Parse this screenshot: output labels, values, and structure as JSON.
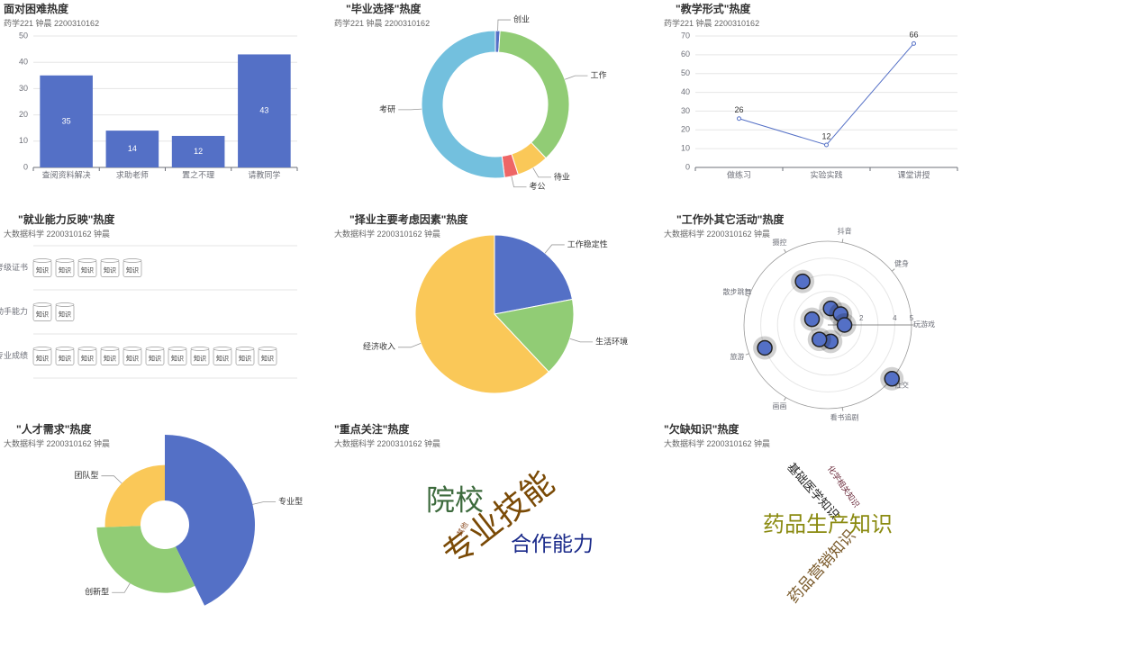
{
  "colors": {
    "blue": "#5470c6",
    "green": "#91cc75",
    "yellow": "#fac858",
    "red": "#ee6666",
    "cyan": "#73c0de",
    "axis": "#6e7079",
    "grid": "#e6e6e6"
  },
  "panels": {
    "p1": {
      "title": "面对困难热度",
      "subtitle": "药学221 钟晨 2200310162"
    },
    "p2": {
      "title": "\"毕业选择\"热度",
      "subtitle": "药学221 钟晨 2200310162"
    },
    "p3": {
      "title": "\"教学形式\"热度",
      "subtitle": "药学221 钟晨 2200310162"
    },
    "p4": {
      "title": "\"就业能力反映\"热度",
      "subtitle": "大数据科学 2200310162 钟晨"
    },
    "p5": {
      "title": "\"择业主要考虑因素\"热度",
      "subtitle": "大数据科学 2200310162 钟晨"
    },
    "p6": {
      "title": "\"工作外其它活动\"热度",
      "subtitle": "大数据科学 2200310162 钟晨"
    },
    "p7": {
      "title": "\"人才需求\"热度",
      "subtitle": "大数据科学 2200310162 钟晨"
    },
    "p8": {
      "title": "\"重点关注\"热度",
      "subtitle": "大数据科学 2200310162 钟晨"
    },
    "p9": {
      "title": "\"欠缺知识\"热度",
      "subtitle": "大数据科学 2200310162 钟晨"
    }
  },
  "chart_data": [
    {
      "type": "bar",
      "categories": [
        "查阅资料解决",
        "求助老师",
        "置之不理",
        "请教同学"
      ],
      "values": [
        35,
        14,
        12,
        43
      ],
      "ylim": [
        0,
        50
      ],
      "yticks": [
        0,
        10,
        20,
        30,
        40,
        50
      ]
    },
    {
      "type": "pie",
      "variant": "donut",
      "slices": [
        {
          "name": "创业",
          "value": 1
        },
        {
          "name": "工作",
          "value": 37
        },
        {
          "name": "待业",
          "value": 7
        },
        {
          "name": "考公",
          "value": 3
        },
        {
          "name": "考研",
          "value": 52
        }
      ]
    },
    {
      "type": "line",
      "categories": [
        "做练习",
        "实验实践",
        "课堂讲授"
      ],
      "values": [
        26,
        12,
        66
      ],
      "ylim": [
        0,
        70
      ],
      "yticks": [
        0,
        10,
        20,
        30,
        40,
        50,
        60,
        70
      ]
    },
    {
      "type": "pictorial_bar",
      "symbol_label": "知识",
      "categories": [
        "专业成绩",
        "动手能力",
        "考级证书"
      ],
      "values": [
        11,
        2,
        5
      ]
    },
    {
      "type": "pie",
      "slices": [
        {
          "name": "工作稳定性",
          "value": 22
        },
        {
          "name": "生活环境",
          "value": 16
        },
        {
          "name": "经济收入",
          "value": 62
        }
      ]
    },
    {
      "type": "scatter",
      "variant": "polar",
      "angle_categories": [
        "抖音",
        "健身",
        "玩游戏",
        "社交",
        "看书追剧",
        "画画",
        "旅游",
        "散步跳舞",
        "摄控"
      ],
      "radial_ticks": [
        2,
        4,
        5
      ],
      "radial_max": 5,
      "points": [
        {
          "category": "抖音",
          "value": 1
        },
        {
          "category": "健身",
          "value": 1
        },
        {
          "category": "玩游戏",
          "value": 1
        },
        {
          "category": "社交",
          "value": 5
        },
        {
          "category": "看书追剧",
          "value": 1
        },
        {
          "category": "画画",
          "value": 1
        },
        {
          "category": "旅游",
          "value": 4
        },
        {
          "category": "散步跳舞",
          "value": 1
        },
        {
          "category": "摄控",
          "value": 3
        }
      ]
    },
    {
      "type": "pie",
      "variant": "rose",
      "slices": [
        {
          "name": "专业型",
          "value": 50
        },
        {
          "name": "创新型",
          "value": 37
        },
        {
          "name": "团队型",
          "value": 30
        }
      ]
    },
    {
      "type": "wordcloud",
      "words": [
        {
          "text": "专业技能",
          "value": 100,
          "color": "#7a4a06"
        },
        {
          "text": "院校",
          "value": 50,
          "color": "#3c6a3c"
        },
        {
          "text": "合作能力",
          "value": 40,
          "color": "#1a2a8a"
        },
        {
          "text": "其他",
          "value": 5,
          "color": "#8a4a20"
        }
      ]
    },
    {
      "type": "wordcloud",
      "words": [
        {
          "text": "药品生产知识",
          "value": 100,
          "color": "#8a8a10"
        },
        {
          "text": "药品营销知识",
          "value": 60,
          "color": "#7a5a2a"
        },
        {
          "text": "基础医学知识",
          "value": 45,
          "color": "#222"
        },
        {
          "text": "化学相关知识",
          "value": 25,
          "color": "#6a2a3a"
        }
      ]
    }
  ]
}
